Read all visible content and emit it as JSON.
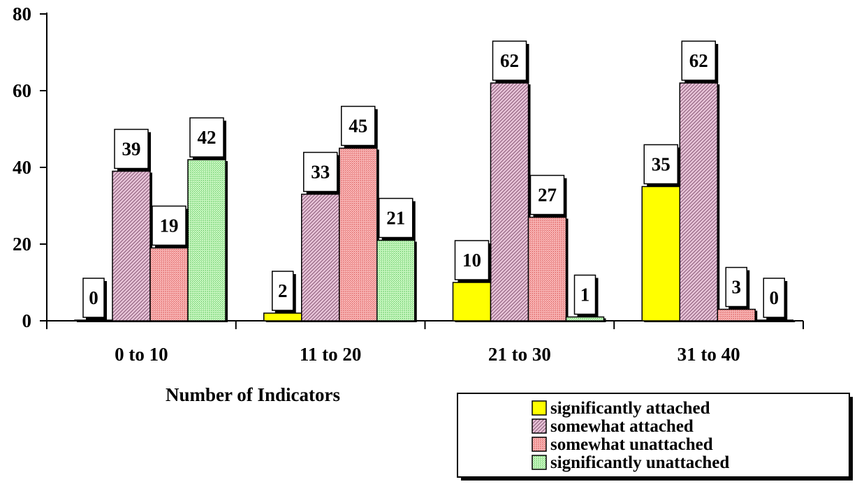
{
  "chart_data": {
    "type": "bar",
    "xlabel": "Number of Indicators",
    "ylabel": "",
    "ylim": [
      0,
      80
    ],
    "yticks": [
      0,
      20,
      40,
      60,
      80
    ],
    "categories": [
      "0 to 10",
      "11 to 20",
      "21 to 30",
      "31 to 40"
    ],
    "series": [
      {
        "name": "significantly attached",
        "values": [
          0,
          2,
          10,
          35
        ],
        "color": "#ffff00",
        "pattern": "solid"
      },
      {
        "name": "somewhat attached",
        "values": [
          39,
          33,
          62,
          62
        ],
        "color": "#d9a8c4",
        "pattern": "diagonal"
      },
      {
        "name": "somewhat unattached",
        "values": [
          19,
          45,
          27,
          3
        ],
        "color": "#f59a9a",
        "pattern": "dots"
      },
      {
        "name": "significantly unattached",
        "values": [
          42,
          21,
          1,
          0
        ],
        "color": "#a8f0a0",
        "pattern": "dots"
      }
    ],
    "data_labels": true,
    "grid": false,
    "legend_position": "bottom-right"
  }
}
